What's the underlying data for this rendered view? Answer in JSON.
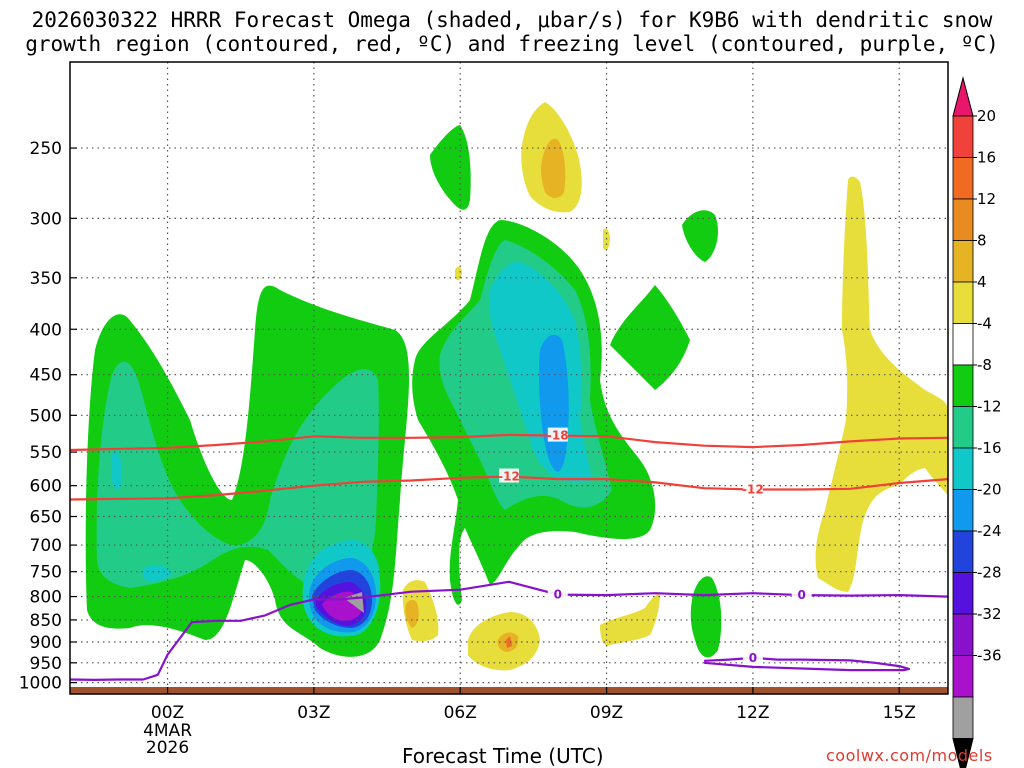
{
  "title": {
    "line1": "2026030322 HRRR Forecast Omega (shaded, μbar/s) for K9B6 with dendritic snow",
    "line2": "growth region (contoured, red, ºC) and freezing level (contoured, purple, ºC)"
  },
  "x_axis": {
    "title": "Forecast Time (UTC)",
    "ticks": [
      {
        "label": "00Z",
        "hour": 0
      },
      {
        "label": "03Z",
        "hour": 3
      },
      {
        "label": "06Z",
        "hour": 6
      },
      {
        "label": "09Z",
        "hour": 9
      },
      {
        "label": "12Z",
        "hour": 12
      },
      {
        "label": "15Z",
        "hour": 15
      }
    ],
    "date_label": [
      "4MAR",
      "2026"
    ],
    "range_hours": [
      -2.0,
      16.0
    ]
  },
  "credit": "coolwx.com/models",
  "chart_data": {
    "type": "heatmap",
    "description": "time-pressure cross section",
    "x_unit": "forecast hour",
    "y_unit": "hPa",
    "y_range": [
      1030,
      200
    ],
    "y_ticks": [
      250,
      300,
      350,
      400,
      450,
      500,
      550,
      600,
      650,
      700,
      750,
      800,
      850,
      900,
      950,
      1000
    ],
    "colorbar": {
      "ticks": [
        "20",
        "16",
        "12",
        "8",
        "4",
        "-4",
        "-8",
        "-12",
        "-16",
        "-20",
        "-24",
        "-28",
        "-32",
        "-36"
      ],
      "colors": [
        "#e8176b",
        "#f0423a",
        "#f06a22",
        "#e88c22",
        "#e6b325",
        "#e8de3b",
        "#ffffff",
        "#11cc11",
        "#22cc88",
        "#11c8c8",
        "#1199ee",
        "#2244dd",
        "#5511dd",
        "#8811cc",
        "#aa11cc",
        "#a0a0a0",
        "#000000"
      ]
    },
    "series": [
      {
        "name": "dendritic -12C isotherm",
        "color": "#f0403a",
        "label": "-12",
        "x": [
          -2.0,
          0,
          1,
          2,
          3,
          4,
          5,
          6,
          7,
          8,
          9,
          10,
          11,
          12,
          13,
          14,
          15,
          16
        ],
        "y": [
          622,
          620,
          615,
          608,
          600,
          594,
          592,
          588,
          586,
          590,
          590,
          595,
          604,
          606,
          606,
          605,
          596,
          590
        ]
      },
      {
        "name": "dendritic -18C isotherm",
        "color": "#f0403a",
        "label": "-18",
        "x": [
          -2.0,
          0,
          1,
          2,
          3,
          4,
          5,
          6,
          7,
          8,
          9,
          10,
          11,
          12,
          13,
          14,
          15,
          16
        ],
        "y": [
          547,
          544,
          540,
          535,
          528,
          530,
          530,
          529,
          526,
          527,
          528,
          536,
          541,
          543,
          540,
          535,
          531,
          530
        ]
      },
      {
        "name": "freezing level 0C",
        "color": "#8811cc",
        "label": "0",
        "x": [
          -2.0,
          -1.5,
          -1,
          -0.5,
          -0.2,
          0,
          0.5,
          1,
          1.5,
          2,
          2.5,
          3,
          3.5,
          4,
          5,
          6,
          7,
          8,
          9,
          10,
          11,
          12,
          13,
          14,
          15,
          16
        ],
        "y": [
          992,
          993,
          992,
          992,
          980,
          930,
          855,
          852,
          852,
          840,
          818,
          806,
          806,
          802,
          790,
          786,
          770,
          796,
          797,
          793,
          797,
          793,
          797,
          798,
          797,
          800
        ]
      },
      {
        "name": "freezing level 0C lower",
        "color": "#8811cc",
        "label": "0",
        "x": [
          11,
          11.5,
          12,
          12.5,
          13,
          14,
          14.5,
          15,
          15.2,
          15.1,
          14,
          13,
          12,
          11
        ],
        "y": [
          945,
          942,
          938,
          942,
          942,
          944,
          950,
          958,
          965,
          968,
          968,
          964,
          960,
          950
        ]
      }
    ],
    "omega_regions": [
      {
        "value": -8,
        "color": "#11cc11",
        "centers_hour": [
          -0.8,
          2.8,
          5.9,
          7.3,
          9.6,
          11.2,
          11,
          -0.3
        ]
      },
      {
        "value": -12,
        "color": "#22cc88",
        "centers_hour": [
          -0.6,
          2.4,
          7.0
        ]
      },
      {
        "value": -16,
        "color": "#11c8c8",
        "centers_hour": [
          7.5,
          3.4
        ]
      },
      {
        "value": -20,
        "color": "#1199ee",
        "centers_hour": [
          7.8,
          3.3
        ]
      },
      {
        "value": -24,
        "color": "#2244dd",
        "centers_hour": [
          3.4
        ]
      },
      {
        "value": -28,
        "color": "#5511dd",
        "centers_hour": [
          3.5
        ]
      },
      {
        "value": -32,
        "color": "#aa11cc",
        "centers_hour": [
          3.5
        ]
      },
      {
        "value": -36,
        "color": "#a0a0a0",
        "centers_hour": [
          3.5
        ]
      },
      {
        "value": 4,
        "color": "#e8de3b",
        "centers_hour": [
          7.8,
          14.4,
          5.0,
          7.0,
          9.7,
          8.0
        ]
      },
      {
        "value": 8,
        "color": "#e6b325",
        "centers_hour": [
          7.9,
          5.0,
          7.0
        ]
      }
    ]
  }
}
